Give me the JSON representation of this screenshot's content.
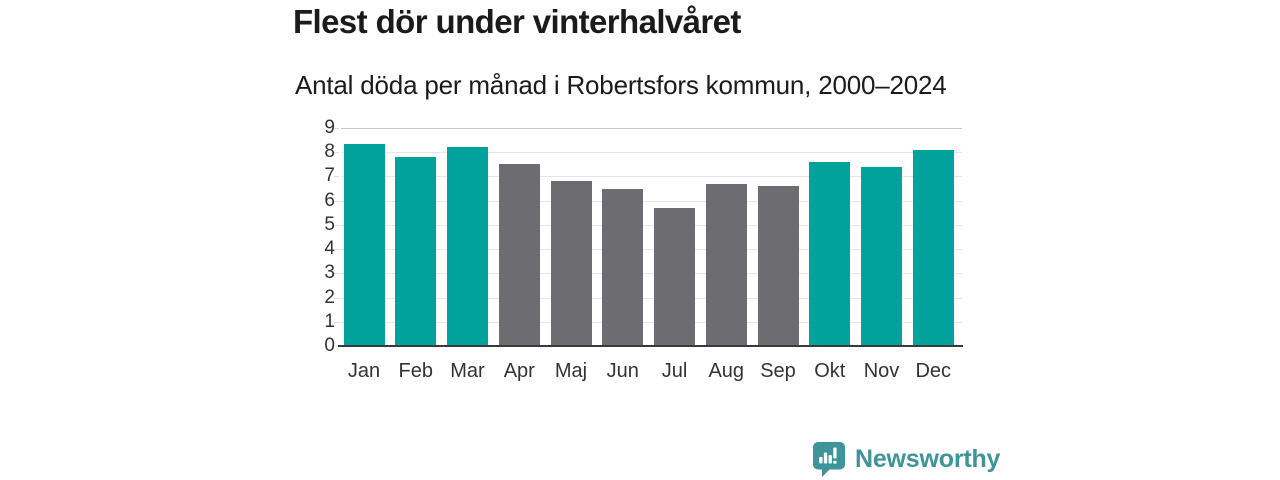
{
  "title": "Flest dör under vinterhalvåret",
  "subtitle": "Antal döda per månad i Robertsfors kommun, 2000–2024",
  "colors": {
    "teal": "#00a29b",
    "gray": "#6d6d71",
    "grid": "#e6e6e6",
    "grid_top": "#c9c9c9",
    "axis_line": "#3a3a3a",
    "text": "#1b1b1b",
    "tick_text": "#333333",
    "logo": "#3f939a"
  },
  "chart_data": {
    "type": "bar",
    "categories": [
      "Jan",
      "Feb",
      "Mar",
      "Apr",
      "Maj",
      "Jun",
      "Jul",
      "Aug",
      "Sep",
      "Okt",
      "Nov",
      "Dec"
    ],
    "values": [
      8.35,
      7.8,
      8.2,
      7.5,
      6.8,
      6.5,
      5.7,
      6.7,
      6.6,
      7.6,
      7.4,
      8.1
    ],
    "bar_colors": [
      "teal",
      "teal",
      "teal",
      "gray",
      "gray",
      "gray",
      "gray",
      "gray",
      "gray",
      "teal",
      "teal",
      "teal"
    ],
    "title": "Flest dör under vinterhalvåret",
    "subtitle": "Antal döda per månad i Robertsfors kommun, 2000–2024",
    "xlabel": "",
    "ylabel": "",
    "ylim": [
      0,
      9
    ],
    "y_ticks": [
      0,
      1,
      2,
      3,
      4,
      5,
      6,
      7,
      8,
      9
    ],
    "grid": true,
    "legend": "none"
  },
  "logo": {
    "text": "Newsworthy",
    "icon": "newsworthy-chart-bubble-icon"
  }
}
